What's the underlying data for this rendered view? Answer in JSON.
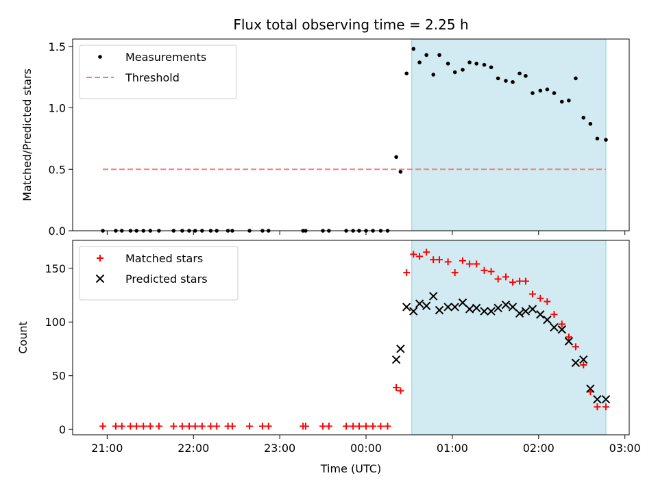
{
  "chart_data": {
    "title": "Flux total observing time = 2.25 h",
    "xlabel": "Time (UTC)",
    "x_unit": "hours UTC (values past 24 are after midnight)",
    "xlim": [
      20.6,
      27.05
    ],
    "x_tick_values": [
      21,
      22,
      23,
      24,
      25,
      26,
      27
    ],
    "x_tick_labels": [
      "21:00",
      "22:00",
      "23:00",
      "00:00",
      "01:00",
      "02:00",
      "03:00"
    ],
    "highlight_span": [
      24.53,
      26.78
    ],
    "highlight_color": "#add8e6",
    "panels": [
      {
        "type": "scatter",
        "ylabel": "Matched/Predicted stars",
        "ylim": [
          0,
          1.56
        ],
        "y_ticks": [
          0.0,
          0.5,
          1.0,
          1.5
        ],
        "y_tick_labels": [
          "0.0",
          "0.5",
          "1.0",
          "1.5"
        ],
        "legend_position": "upper-left",
        "series": [
          {
            "name": "Measurements",
            "marker": "dot",
            "color": "#000000",
            "x": [
              20.95,
              21.1,
              21.17,
              21.27,
              21.34,
              21.42,
              21.5,
              21.6,
              21.77,
              21.87,
              21.95,
              22.02,
              22.1,
              22.2,
              22.27,
              22.4,
              22.45,
              22.65,
              22.8,
              22.87,
              23.27,
              23.3,
              23.5,
              23.57,
              23.77,
              23.85,
              23.92,
              24.0,
              24.08,
              24.17,
              24.25,
              24.35,
              24.4,
              24.47,
              24.55,
              24.62,
              24.7,
              24.78,
              24.85,
              24.95,
              25.03,
              25.12,
              25.2,
              25.28,
              25.37,
              25.45,
              25.53,
              25.62,
              25.7,
              25.78,
              25.85,
              25.93,
              26.02,
              26.1,
              26.18,
              26.27,
              26.35,
              26.43,
              26.52,
              26.6,
              26.68,
              26.78
            ],
            "y": [
              0.0,
              0.0,
              0.0,
              0.0,
              0.0,
              0.0,
              0.0,
              0.0,
              0.0,
              0.0,
              0.0,
              0.0,
              0.0,
              0.0,
              0.0,
              0.0,
              0.0,
              0.0,
              0.0,
              0.0,
              0.0,
              0.0,
              0.0,
              0.0,
              0.0,
              0.0,
              0.0,
              0.0,
              0.0,
              0.0,
              0.0,
              0.6,
              0.48,
              1.28,
              1.48,
              1.37,
              1.43,
              1.27,
              1.43,
              1.36,
              1.29,
              1.31,
              1.37,
              1.36,
              1.35,
              1.33,
              1.24,
              1.22,
              1.21,
              1.28,
              1.26,
              1.12,
              1.14,
              1.15,
              1.12,
              1.05,
              1.06,
              1.24,
              0.92,
              0.87,
              0.75,
              0.74
            ]
          },
          {
            "name": "Threshold",
            "type": "line",
            "style": "dashed",
            "color": "#f08080",
            "x": [
              20.95,
              26.78
            ],
            "y": [
              0.5,
              0.5
            ]
          }
        ]
      },
      {
        "type": "scatter",
        "ylabel": "Count",
        "ylim": [
          -5,
          176
        ],
        "y_ticks": [
          0,
          50,
          100,
          150
        ],
        "y_tick_labels": [
          "0",
          "50",
          "100",
          "150"
        ],
        "legend_position": "upper-left",
        "series": [
          {
            "name": "Matched stars",
            "marker": "plus",
            "color": "#ff0000",
            "x": [
              20.95,
              21.1,
              21.17,
              21.27,
              21.34,
              21.42,
              21.5,
              21.6,
              21.77,
              21.87,
              21.95,
              22.02,
              22.1,
              22.2,
              22.27,
              22.4,
              22.45,
              22.65,
              22.8,
              22.87,
              23.27,
              23.3,
              23.5,
              23.57,
              23.77,
              23.85,
              23.92,
              24.0,
              24.08,
              24.17,
              24.25,
              24.35,
              24.4,
              24.47,
              24.55,
              24.62,
              24.7,
              24.78,
              24.85,
              24.95,
              25.03,
              25.12,
              25.2,
              25.28,
              25.37,
              25.45,
              25.53,
              25.62,
              25.7,
              25.78,
              25.85,
              25.93,
              26.02,
              26.1,
              26.18,
              26.27,
              26.35,
              26.43,
              26.52,
              26.6,
              26.68,
              26.78
            ],
            "y": [
              3,
              3,
              3,
              3,
              3,
              3,
              3,
              3,
              3,
              3,
              3,
              3,
              3,
              3,
              3,
              3,
              3,
              3,
              3,
              3,
              3,
              3,
              3,
              3,
              3,
              3,
              3,
              3,
              3,
              3,
              3,
              39,
              36,
              146,
              163,
              161,
              165,
              158,
              158,
              156,
              146,
              157,
              154,
              154,
              148,
              147,
              140,
              142,
              137,
              138,
              138,
              126,
              122,
              119,
              107,
              98,
              86,
              77,
              60,
              35,
              21,
              21
            ]
          },
          {
            "name": "Predicted stars",
            "marker": "x",
            "color": "#000000",
            "x": [
              24.35,
              24.4,
              24.47,
              24.55,
              24.62,
              24.7,
              24.78,
              24.85,
              24.95,
              25.03,
              25.12,
              25.2,
              25.28,
              25.37,
              25.45,
              25.53,
              25.62,
              25.7,
              25.78,
              25.85,
              25.93,
              26.02,
              26.1,
              26.18,
              26.27,
              26.35,
              26.43,
              26.52,
              26.6,
              26.68,
              26.78
            ],
            "y": [
              65,
              75,
              114,
              110,
              117,
              115,
              124,
              111,
              114,
              114,
              118,
              112,
              113,
              110,
              110,
              113,
              116,
              114,
              108,
              110,
              112,
              107,
              102,
              95,
              93,
              82,
              62,
              65,
              38,
              28,
              28
            ]
          }
        ]
      }
    ]
  }
}
